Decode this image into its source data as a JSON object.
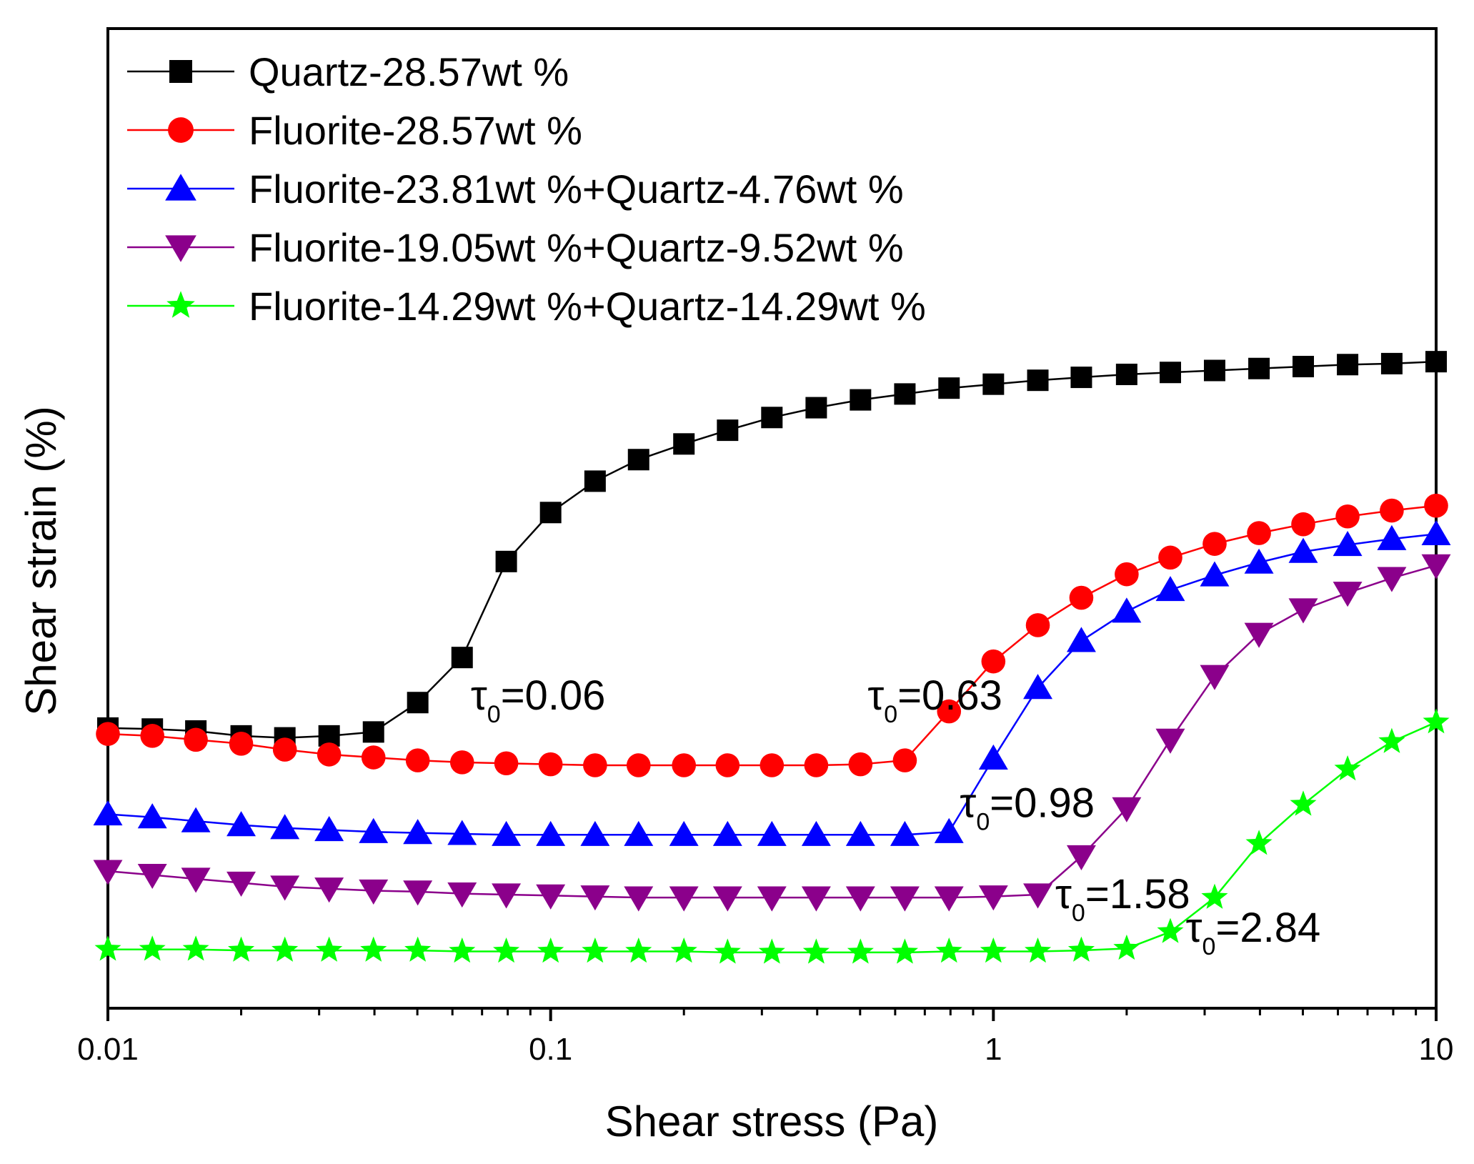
{
  "chart_data": {
    "type": "line",
    "xscale": "log",
    "xlabel": "Shear stress (Pa)",
    "ylabel": "Shear strain (%)",
    "xlim": [
      0.01,
      10
    ],
    "ylim": [
      0,
      100
    ],
    "x_ticks": [
      {
        "value": 0.01,
        "label": "0.01"
      },
      {
        "value": 0.1,
        "label": "0.1"
      },
      {
        "value": 1,
        "label": "1"
      },
      {
        "value": 10,
        "label": "10"
      }
    ],
    "y_ticks_labeled": false,
    "grid": false,
    "legend_position": "top-left",
    "x": [
      0.01,
      0.0126,
      0.0158,
      0.02,
      0.0251,
      0.0316,
      0.0398,
      0.0501,
      0.0631,
      0.0794,
      0.1,
      0.126,
      0.158,
      0.2,
      0.251,
      0.316,
      0.398,
      0.501,
      0.631,
      0.794,
      1,
      1.26,
      1.58,
      2,
      2.51,
      3.16,
      3.98,
      5.01,
      6.31,
      7.94,
      10
    ],
    "series": [
      {
        "name": "Quartz-28.57wt %",
        "color": "#000000",
        "marker": "square",
        "values": [
          28.6,
          28.5,
          28.3,
          27.8,
          27.6,
          27.8,
          28.2,
          31.2,
          35.8,
          45.6,
          50.6,
          53.8,
          56.0,
          57.6,
          59.0,
          60.3,
          61.3,
          62.1,
          62.7,
          63.3,
          63.7,
          64.1,
          64.4,
          64.7,
          64.9,
          65.1,
          65.3,
          65.5,
          65.7,
          65.8,
          66.0
        ]
      },
      {
        "name": "Fluorite-28.57wt %",
        "color": "#ff0000",
        "marker": "circle",
        "values": [
          28.0,
          27.8,
          27.4,
          27.0,
          26.4,
          25.9,
          25.6,
          25.3,
          25.1,
          25.0,
          24.9,
          24.8,
          24.8,
          24.8,
          24.8,
          24.8,
          24.8,
          24.9,
          25.3,
          30.3,
          35.4,
          39.1,
          41.9,
          44.3,
          46.0,
          47.4,
          48.5,
          49.4,
          50.2,
          50.8,
          51.3
        ]
      },
      {
        "name": "Fluorite-23.81wt %+Quartz-4.76wt %",
        "color": "#0000ff",
        "marker": "triangle-up",
        "values": [
          19.8,
          19.5,
          19.1,
          18.7,
          18.4,
          18.2,
          18.0,
          17.9,
          17.8,
          17.7,
          17.7,
          17.7,
          17.7,
          17.7,
          17.7,
          17.7,
          17.7,
          17.7,
          17.7,
          18.0,
          25.5,
          32.7,
          37.5,
          40.5,
          42.7,
          44.2,
          45.5,
          46.6,
          47.3,
          47.9,
          48.4
        ]
      },
      {
        "name": "Fluorite-19.05wt %+Quartz-9.52wt %",
        "color": "#8b008b",
        "marker": "triangle-down",
        "values": [
          14.0,
          13.6,
          13.2,
          12.8,
          12.4,
          12.2,
          12.0,
          11.9,
          11.7,
          11.6,
          11.5,
          11.4,
          11.3,
          11.3,
          11.3,
          11.3,
          11.3,
          11.3,
          11.3,
          11.3,
          11.4,
          11.6,
          15.5,
          20.4,
          27.4,
          33.9,
          38.2,
          40.7,
          42.4,
          43.9,
          45.2
        ]
      },
      {
        "name": "Fluorite-14.29wt %+Quartz-14.29wt %",
        "color": "#00ff00",
        "marker": "star",
        "values": [
          6.0,
          6.0,
          6.0,
          5.9,
          5.9,
          5.9,
          5.9,
          5.9,
          5.8,
          5.8,
          5.8,
          5.8,
          5.8,
          5.8,
          5.7,
          5.7,
          5.7,
          5.7,
          5.7,
          5.8,
          5.8,
          5.8,
          5.9,
          6.1,
          7.8,
          11.3,
          16.8,
          20.8,
          24.4,
          27.2,
          29.2
        ]
      }
    ],
    "annotations": [
      {
        "symbol": "τ",
        "sub": "0",
        "text": "=0.06",
        "x": 0.066,
        "y": 30.5
      },
      {
        "symbol": "τ",
        "sub": "0",
        "text": "=0.63",
        "x": 0.52,
        "y": 30.5
      },
      {
        "symbol": "τ",
        "sub": "0",
        "text": "=0.98",
        "x": 0.84,
        "y": 19.5
      },
      {
        "symbol": "τ",
        "sub": "0",
        "text": "=1.58",
        "x": 1.38,
        "y": 10.2
      },
      {
        "symbol": "τ",
        "sub": "0",
        "text": "=2.84",
        "x": 2.72,
        "y": 6.8
      }
    ]
  }
}
